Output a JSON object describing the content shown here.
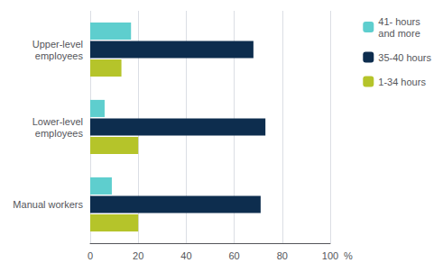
{
  "chart_data": {
    "type": "bar",
    "orientation": "horizontal",
    "categories": [
      "Upper-level\nemployees",
      "Lower-level\nemployees",
      "Manual workers"
    ],
    "series": [
      {
        "name": "41- hours\nand more",
        "color": "#5ecece",
        "values": [
          17,
          6,
          9
        ]
      },
      {
        "name": "35-40 hours",
        "color": "#0d2d4e",
        "values": [
          68,
          73,
          71
        ]
      },
      {
        "name": "1-34 hours",
        "color": "#b5c42a",
        "values": [
          13,
          20,
          20
        ]
      }
    ],
    "xlim": [
      0,
      100
    ],
    "xticks": [
      0,
      20,
      40,
      60,
      80,
      100
    ],
    "xlabel": "%",
    "grid": true,
    "legend": "upper right"
  }
}
